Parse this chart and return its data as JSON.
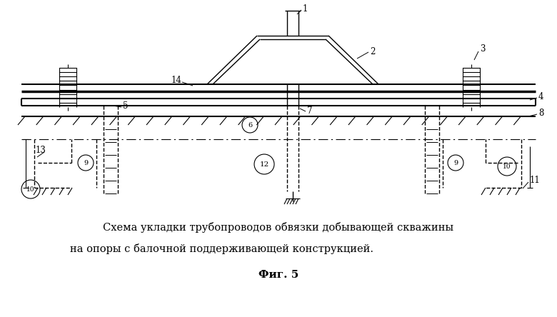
{
  "title_line1": "Схема укладки трубопроводов обвязки добывающей скважины",
  "title_line2": "на опоры с балочной поддерживающей конструкцией.",
  "fig_label": "Фиг. 5",
  "bg_color": "#ffffff",
  "figsize": [
    7.8,
    4.44
  ],
  "dpi": 100
}
